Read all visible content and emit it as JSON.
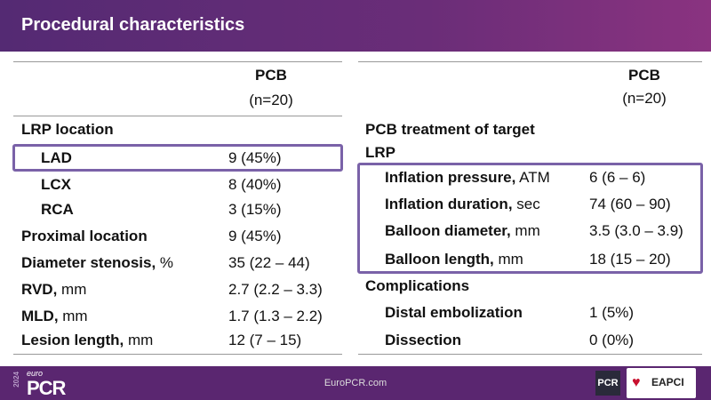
{
  "title": "Procedural characteristics",
  "left": {
    "header": "PCB",
    "subheader": "(n=20)",
    "rows": [
      {
        "label": "LRP location",
        "unit": "",
        "value": ""
      },
      {
        "label": "LAD",
        "unit": "",
        "value": "9 (45%)"
      },
      {
        "label": "LCX",
        "unit": "",
        "value": "8 (40%)"
      },
      {
        "label": "RCA",
        "unit": "",
        "value": "3 (15%)"
      },
      {
        "label": "Proximal location",
        "unit": "",
        "value": "9 (45%)"
      },
      {
        "label": "Diameter stenosis,",
        "unit": " %",
        "value": "35 (22 – 44)"
      },
      {
        "label": "RVD,",
        "unit": " mm",
        "value": "2.7 (2.2 – 3.3)"
      },
      {
        "label": "MLD,",
        "unit": " mm",
        "value": "1.7 (1.3 – 2.2)"
      },
      {
        "label": "Lesion length,",
        "unit": " mm",
        "value": "12 (7 – 15)"
      }
    ]
  },
  "right": {
    "header": "PCB",
    "subheader": "(n=20)",
    "rows": [
      {
        "label": "PCB treatment of target",
        "unit": "",
        "value": ""
      },
      {
        "label": "LRP",
        "unit": "",
        "value": ""
      },
      {
        "label": "Inflation pressure,",
        "unit": " ATM",
        "value": "6 (6 – 6)"
      },
      {
        "label": "Inflation duration,",
        "unit": " sec",
        "value": "74 (60 – 90)"
      },
      {
        "label": "Balloon diameter,",
        "unit": " mm",
        "value": "3.5 (3.0 – 3.9)"
      },
      {
        "label": "Balloon length,",
        "unit": " mm",
        "value": "18 (15 – 20)"
      },
      {
        "label": "Complications",
        "unit": "",
        "value": ""
      },
      {
        "label": "Distal embolization",
        "unit": "",
        "value": "1 (5%)"
      },
      {
        "label": "Dissection",
        "unit": "",
        "value": "0 (0%)"
      }
    ]
  },
  "footer": {
    "url": "EuroPCR.com",
    "year": "2024",
    "logo_euro": "euro",
    "logo_pcr": "PCR",
    "pcr_badge": "PCR",
    "eapci": "EAPCI"
  },
  "colors": {
    "header": "#542a73",
    "footer": "#5a2670",
    "highlight": "#7a62a8"
  }
}
